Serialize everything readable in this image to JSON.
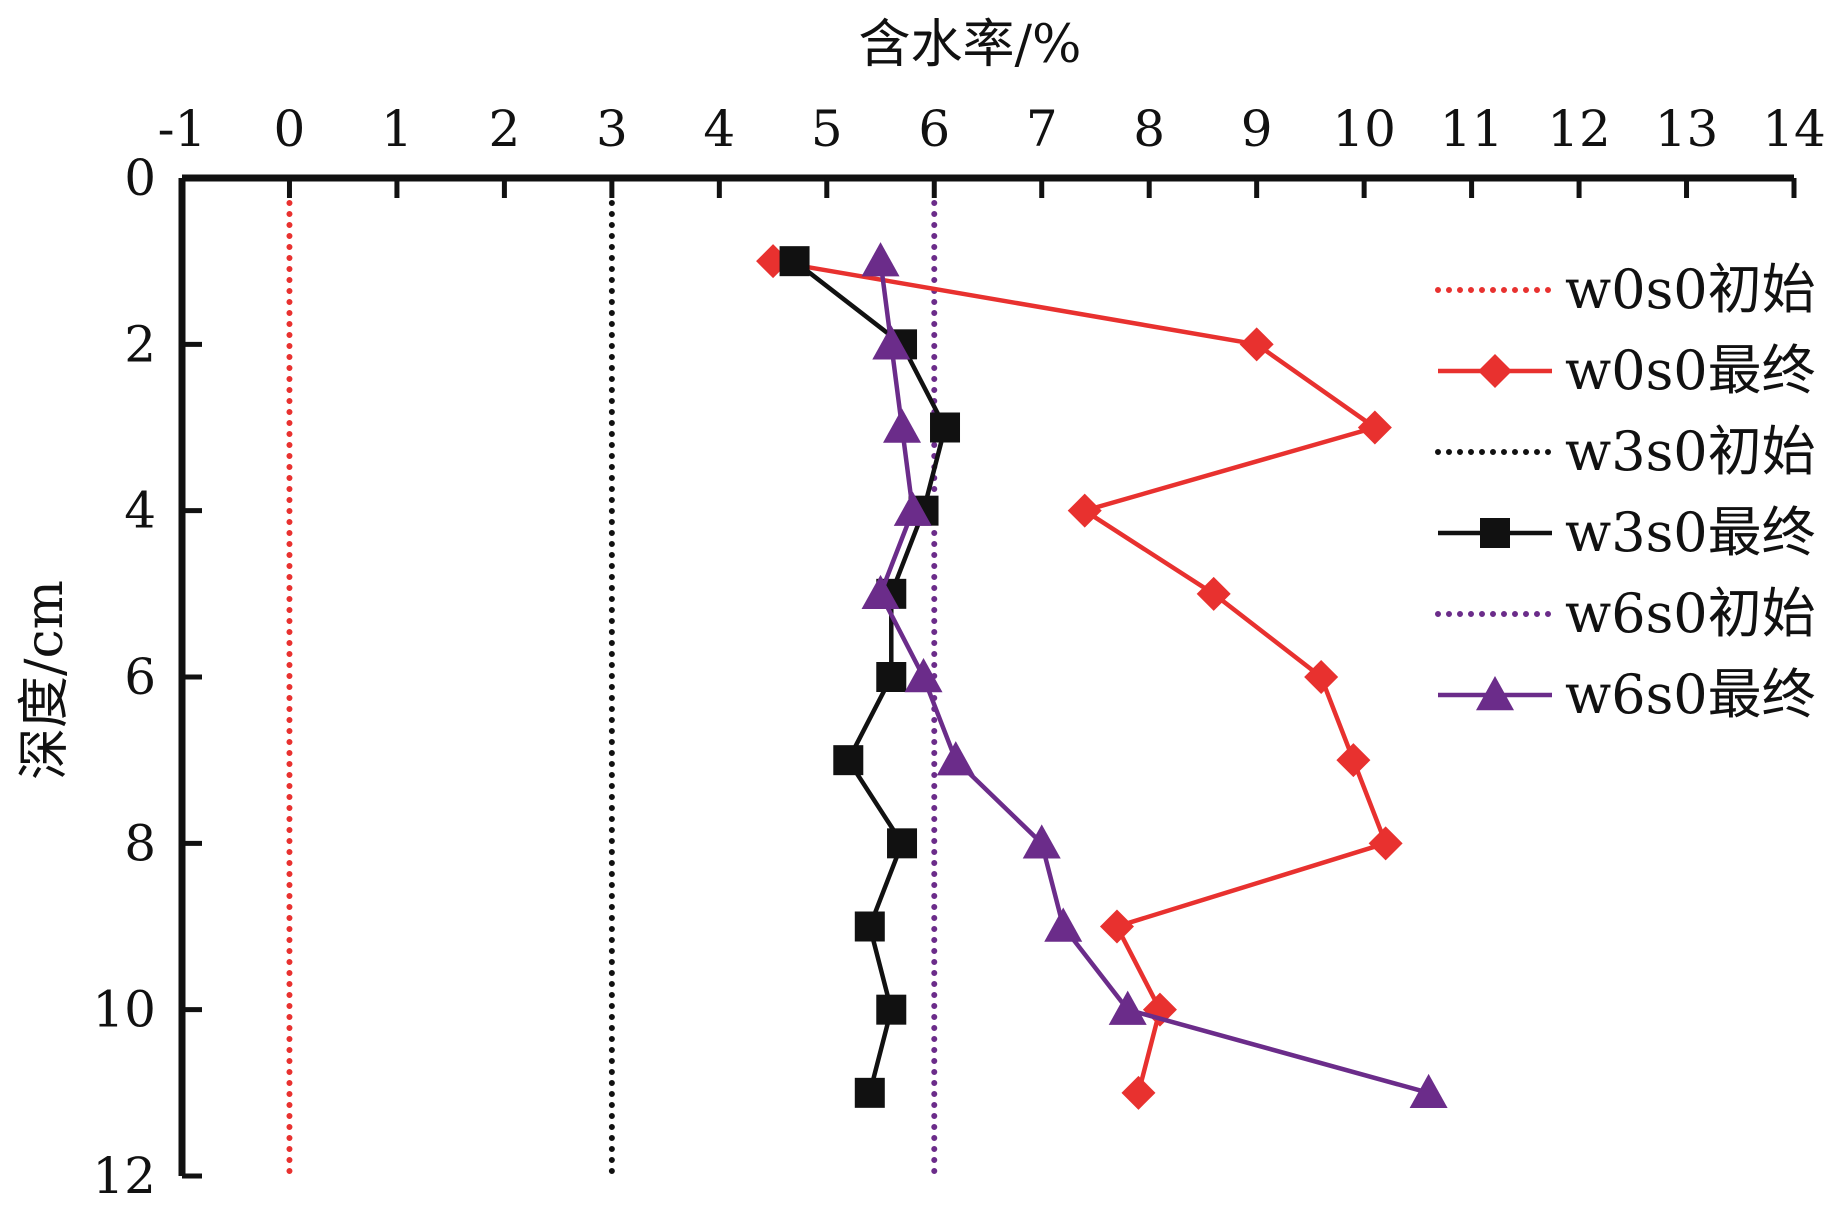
{
  "chart_data": {
    "type": "line",
    "title": "",
    "xlabel": "含水率/%",
    "ylabel": "深度/cm",
    "xlim": [
      -1,
      14
    ],
    "ylim": [
      0,
      12
    ],
    "y_inverted": true,
    "x_axis_position": "top",
    "x_ticks": [
      "-1",
      "0",
      "1",
      "2",
      "3",
      "4",
      "5",
      "6",
      "7",
      "8",
      "9",
      "10",
      "11",
      "12",
      "13",
      "14"
    ],
    "y_ticks": [
      "0",
      "2",
      "4",
      "6",
      "8",
      "10",
      "12"
    ],
    "grid": false,
    "legend_position": "right",
    "series": [
      {
        "name": "w0s0初始",
        "color": "#e8312f",
        "line": "dotted",
        "marker": "none",
        "points": [
          {
            "x": 0,
            "y": 0.3
          },
          {
            "x": 0,
            "y": 12
          }
        ]
      },
      {
        "name": "w0s0最终",
        "color": "#e8312f",
        "line": "solid",
        "marker": "diamond",
        "points": [
          {
            "x": 4.5,
            "y": 1
          },
          {
            "x": 9.0,
            "y": 2
          },
          {
            "x": 10.1,
            "y": 3
          },
          {
            "x": 7.4,
            "y": 4
          },
          {
            "x": 8.6,
            "y": 5
          },
          {
            "x": 9.6,
            "y": 6
          },
          {
            "x": 9.9,
            "y": 7
          },
          {
            "x": 10.2,
            "y": 8
          },
          {
            "x": 7.7,
            "y": 9
          },
          {
            "x": 8.1,
            "y": 10
          },
          {
            "x": 7.9,
            "y": 11
          }
        ]
      },
      {
        "name": "w3s0初始",
        "color": "#111111",
        "line": "dotted",
        "marker": "none",
        "points": [
          {
            "x": 3,
            "y": 0.3
          },
          {
            "x": 3,
            "y": 12
          }
        ]
      },
      {
        "name": "w3s0最终",
        "color": "#111111",
        "line": "solid",
        "marker": "square",
        "points": [
          {
            "x": 4.7,
            "y": 1
          },
          {
            "x": 5.7,
            "y": 2
          },
          {
            "x": 6.1,
            "y": 3
          },
          {
            "x": 5.9,
            "y": 4
          },
          {
            "x": 5.6,
            "y": 5
          },
          {
            "x": 5.6,
            "y": 6
          },
          {
            "x": 5.2,
            "y": 7
          },
          {
            "x": 5.7,
            "y": 8
          },
          {
            "x": 5.4,
            "y": 9
          },
          {
            "x": 5.6,
            "y": 10
          },
          {
            "x": 5.4,
            "y": 11
          }
        ]
      },
      {
        "name": "w6s0初始",
        "color": "#6b2c8a",
        "line": "dotted",
        "marker": "none",
        "points": [
          {
            "x": 6,
            "y": 0.3
          },
          {
            "x": 6,
            "y": 12
          }
        ]
      },
      {
        "name": "w6s0最终",
        "color": "#6b2c8a",
        "line": "solid",
        "marker": "triangle",
        "points": [
          {
            "x": 5.5,
            "y": 1
          },
          {
            "x": 5.6,
            "y": 2
          },
          {
            "x": 5.7,
            "y": 3
          },
          {
            "x": 5.8,
            "y": 4
          },
          {
            "x": 5.5,
            "y": 5
          },
          {
            "x": 5.9,
            "y": 6
          },
          {
            "x": 6.2,
            "y": 7
          },
          {
            "x": 7.0,
            "y": 8
          },
          {
            "x": 7.2,
            "y": 9
          },
          {
            "x": 7.8,
            "y": 10
          },
          {
            "x": 10.6,
            "y": 11
          }
        ]
      }
    ]
  }
}
